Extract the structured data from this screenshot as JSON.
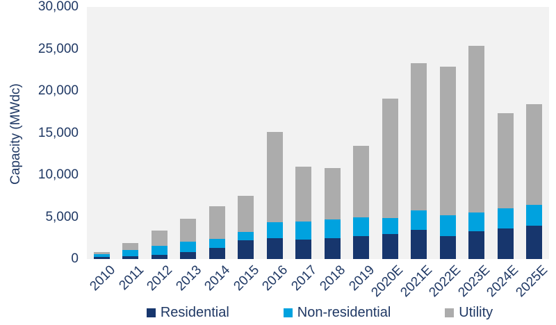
{
  "colors": {
    "residential": "#17366D",
    "non_residential": "#00A2DF",
    "utility": "#ACACAC",
    "axis_text": "#1F3864",
    "plot_background": "#F2F2F2",
    "page_background": "#FFFFFF"
  },
  "chart_data": {
    "type": "bar",
    "stacked": true,
    "title": "",
    "xlabel": "",
    "ylabel": "Capacity (MWdc)",
    "ylim": [
      0,
      30000
    ],
    "ytick_step": 5000,
    "yticks": [
      0,
      5000,
      10000,
      15000,
      20000,
      25000,
      30000
    ],
    "grid": false,
    "legend_position": "bottom",
    "categories": [
      "2010",
      "2011",
      "2012",
      "2013",
      "2014",
      "2015",
      "2016",
      "2017",
      "2018",
      "2019",
      "2020E",
      "2021E",
      "2022E",
      "2023E",
      "2024E",
      "2025E"
    ],
    "series": [
      {
        "name": "Residential",
        "color": "#17366D",
        "values": [
          250,
          300,
          500,
          800,
          1300,
          2200,
          2500,
          2350,
          2450,
          2750,
          3000,
          3450,
          2750,
          3300,
          3650,
          3950
        ]
      },
      {
        "name": "Non-residential",
        "color": "#00A2DF",
        "values": [
          350,
          800,
          1050,
          1300,
          1100,
          1050,
          1850,
          2150,
          2250,
          2250,
          1900,
          2350,
          2450,
          2200,
          2350,
          2500
        ]
      },
      {
        "name": "Utility",
        "color": "#ACACAC",
        "values": [
          250,
          800,
          1800,
          2700,
          3900,
          4250,
          10750,
          6500,
          6100,
          8450,
          14200,
          17500,
          17700,
          19900,
          11350,
          11950
        ]
      }
    ],
    "totals": [
      850,
      1900,
      3350,
      4800,
      6300,
      7500,
      15100,
      11000,
      10800,
      13450,
      19100,
      23300,
      22900,
      25400,
      17350,
      18400
    ]
  }
}
